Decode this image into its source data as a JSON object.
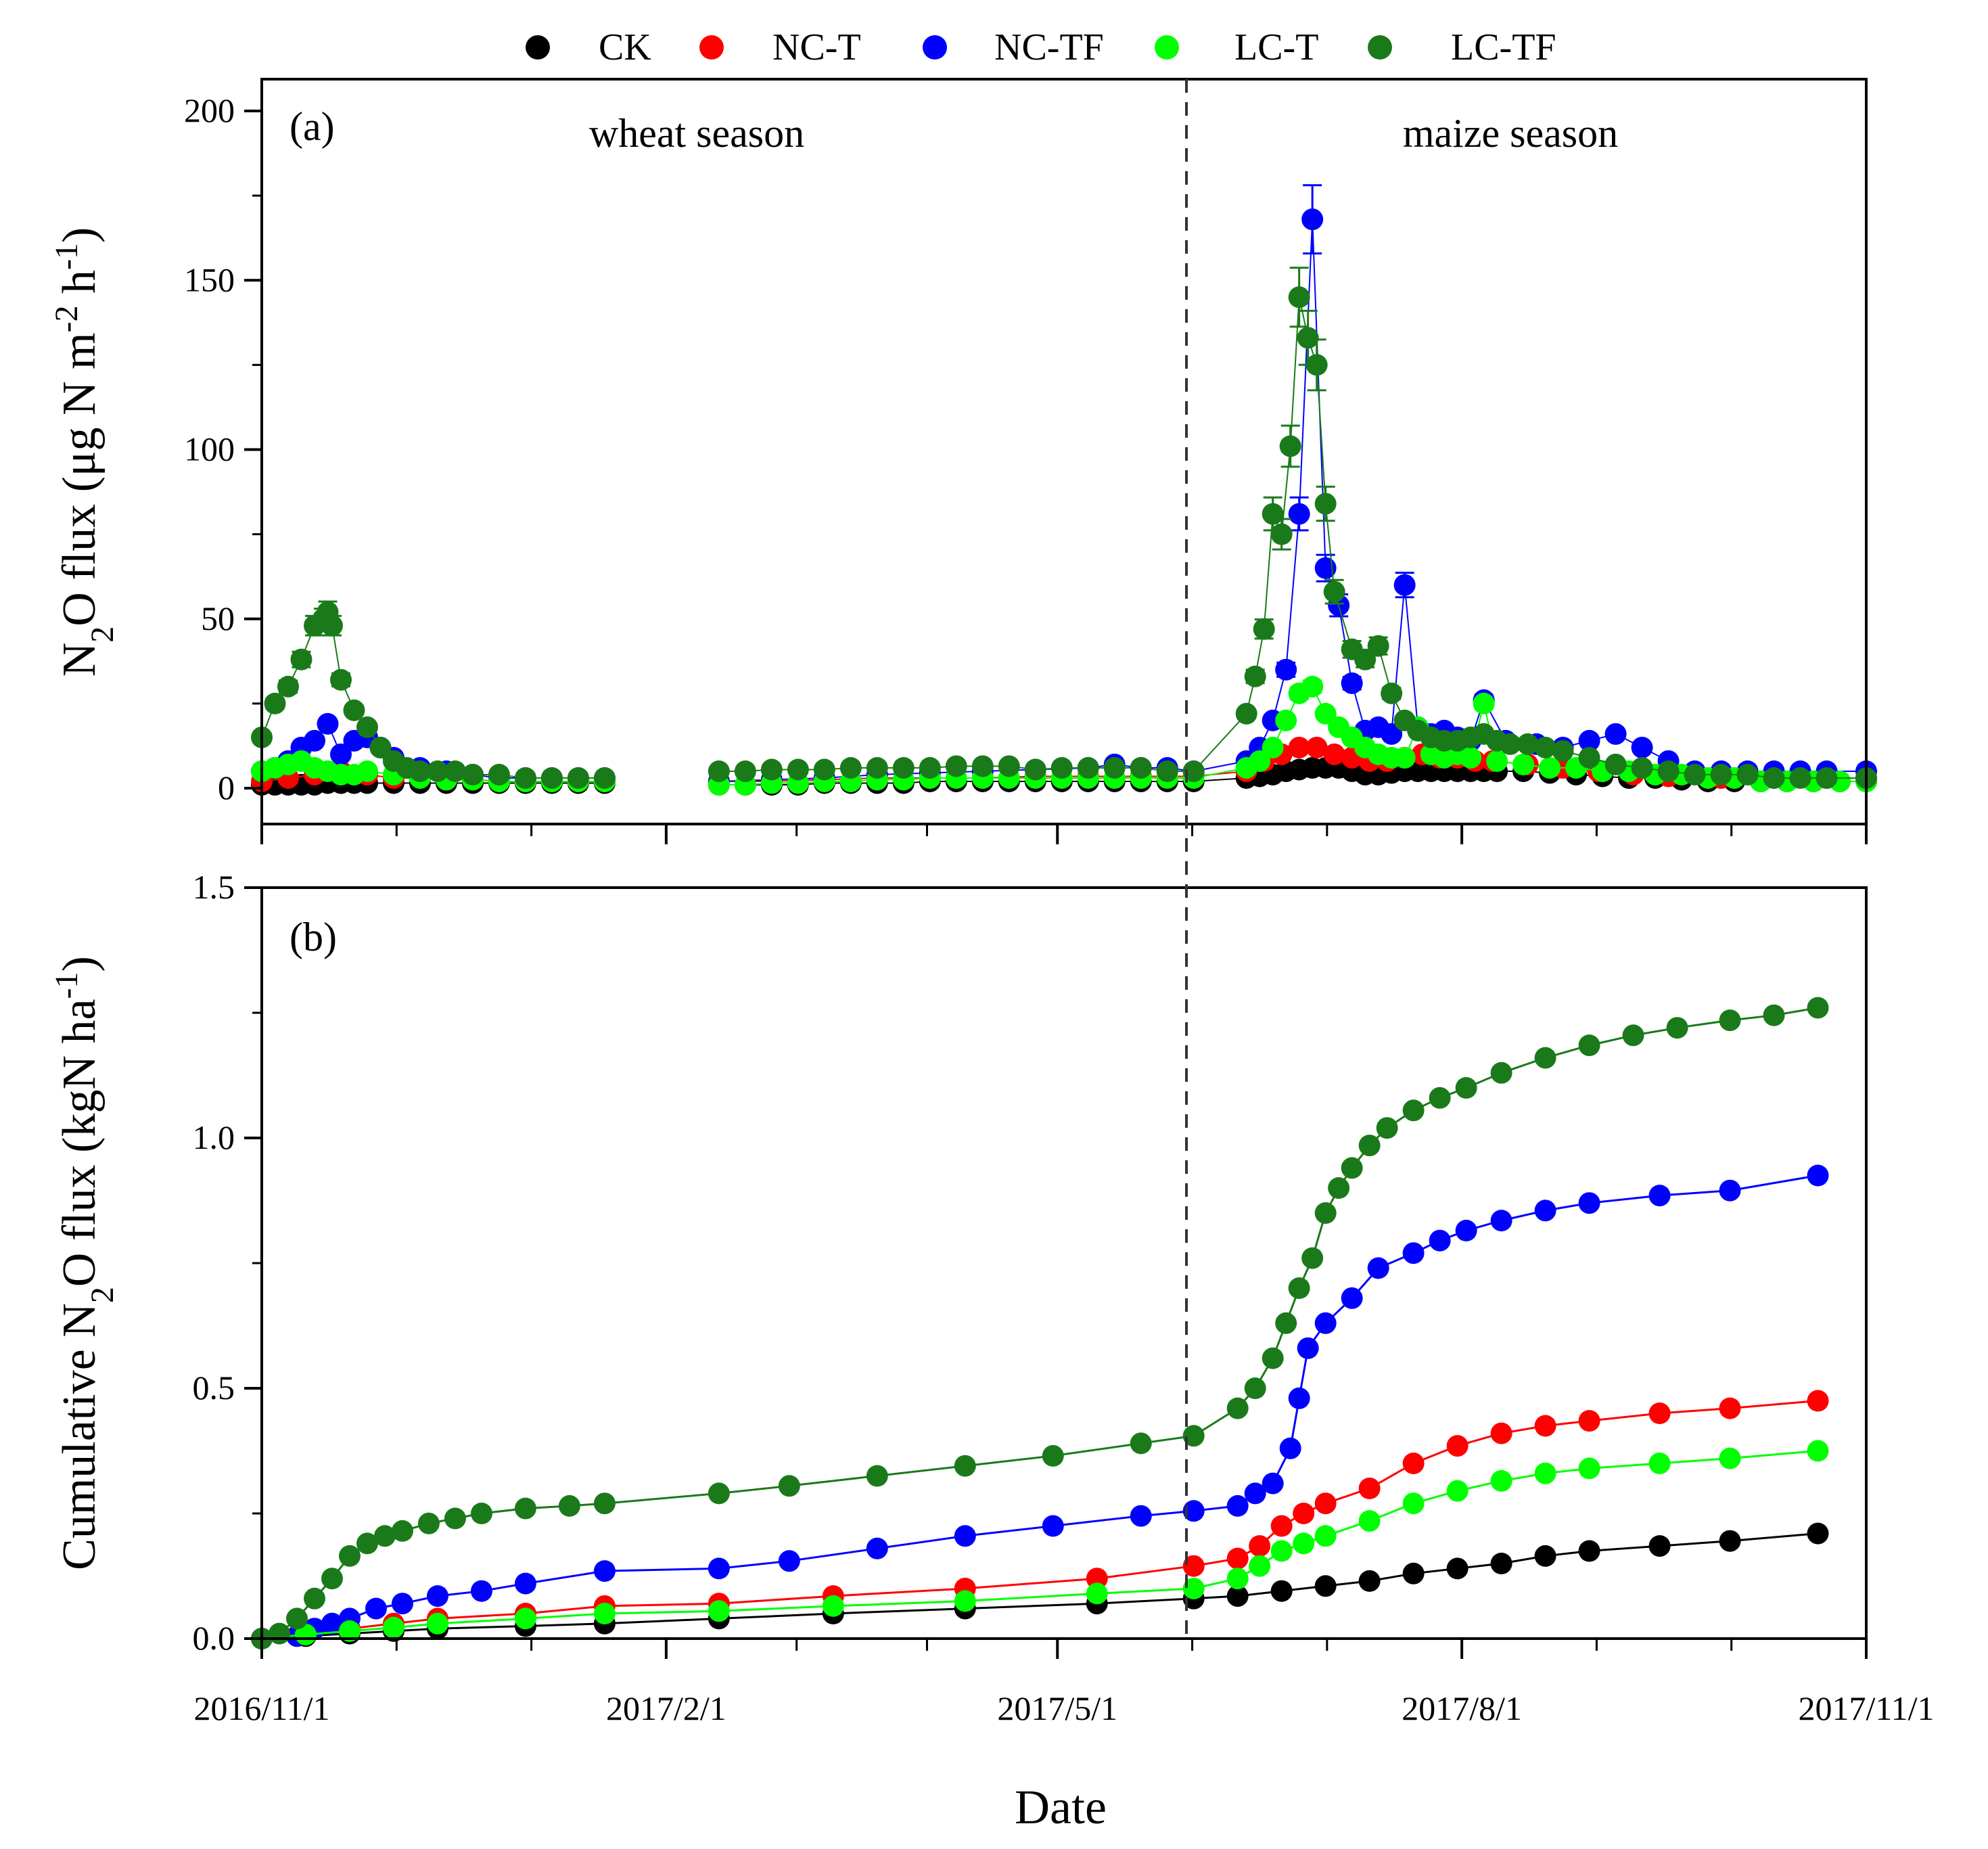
{
  "chart_data": [
    {
      "panel": "(a)",
      "type": "scatter",
      "ylabel": "N2O flux (μg N m-2 h-1)",
      "ylim": [
        -20,
        200
      ],
      "yticks": [
        0,
        50,
        100,
        150,
        200
      ],
      "annotations": [
        "wheat season",
        "maize season"
      ],
      "date_range_days": [
        0,
        365
      ],
      "series": [
        {
          "name": "CK",
          "color": "#000000",
          "x": [
            0,
            3,
            6,
            9,
            12,
            15,
            18,
            21,
            24,
            30,
            36,
            42,
            48,
            54,
            60,
            66,
            72,
            78,
            104,
            110,
            116,
            122,
            128,
            134,
            140,
            146,
            152,
            158,
            164,
            170,
            176,
            182,
            188,
            194,
            200,
            206,
            212,
            224,
            227,
            230,
            233,
            236,
            239,
            242,
            245,
            248,
            251,
            254,
            257,
            260,
            263,
            266,
            269,
            272,
            275,
            278,
            281,
            287,
            293,
            299,
            305,
            311,
            317,
            323,
            329,
            335,
            341,
            347,
            353,
            359,
            365
          ],
          "y": [
            1,
            1,
            1,
            1,
            1,
            1.5,
            1.5,
            1.5,
            1.5,
            1.5,
            1.5,
            1.5,
            1.5,
            1.5,
            1.5,
            1.5,
            1.5,
            1.5,
            1,
            1,
            1,
            1,
            1.5,
            1.5,
            1.5,
            1.5,
            2,
            2,
            2,
            2,
            2,
            2,
            2,
            2,
            2,
            2,
            2,
            3,
            3.5,
            4,
            5,
            5.5,
            6,
            6,
            6,
            5,
            4,
            4,
            4.5,
            5,
            5,
            5,
            5,
            5,
            5,
            5,
            5,
            5,
            4.5,
            4,
            3.5,
            3,
            3,
            2.5,
            2,
            2,
            2,
            2,
            2,
            2,
            2
          ]
        },
        {
          "name": "NC-T",
          "color": "#ff0000",
          "x": [
            0,
            6,
            12,
            18,
            24,
            30,
            36,
            42,
            48,
            54,
            60,
            66,
            72,
            78,
            104,
            116,
            128,
            140,
            152,
            164,
            176,
            188,
            200,
            212,
            224,
            228,
            232,
            236,
            240,
            244,
            248,
            252,
            256,
            260,
            264,
            268,
            272,
            276,
            280,
            288,
            296,
            304,
            312,
            320,
            332,
            344,
            356,
            365
          ],
          "y": [
            2,
            3,
            4,
            5,
            4,
            3,
            3,
            2.5,
            2.5,
            2,
            2,
            2,
            2,
            2,
            2,
            2,
            2.5,
            3,
            3,
            3,
            3.5,
            3.5,
            3.5,
            3.5,
            5,
            8,
            10,
            12,
            12,
            10,
            9,
            8,
            8,
            9,
            10,
            9,
            9,
            8,
            8,
            7,
            6,
            5,
            4,
            3.5,
            3,
            3,
            3,
            3
          ]
        },
        {
          "name": "NC-TF",
          "color": "#0000ff",
          "x": [
            0,
            3,
            6,
            9,
            12,
            15,
            18,
            21,
            24,
            27,
            30,
            36,
            42,
            48,
            54,
            60,
            66,
            72,
            78,
            104,
            116,
            128,
            140,
            152,
            164,
            176,
            188,
            194,
            200,
            206,
            212,
            224,
            227,
            230,
            233,
            236,
            239,
            242,
            245,
            248,
            251,
            254,
            257,
            260,
            263,
            266,
            269,
            272,
            275,
            278,
            283,
            290,
            296,
            302,
            308,
            314,
            320,
            326,
            332,
            338,
            344,
            350,
            356,
            365
          ],
          "y": [
            5,
            6,
            8,
            12,
            14,
            19,
            10,
            14,
            15,
            12,
            9,
            6,
            5,
            4,
            3,
            3,
            3,
            3,
            3,
            2,
            2.5,
            3,
            4,
            4.5,
            5,
            5.5,
            6,
            7,
            6,
            6,
            5,
            8,
            12,
            20,
            35,
            81,
            168,
            65,
            54,
            31,
            17,
            18,
            16,
            60,
            18,
            16,
            17,
            15,
            14,
            26,
            14,
            13,
            12,
            14,
            16,
            12,
            8,
            5,
            5,
            5,
            5,
            5,
            5,
            5
          ]
        },
        {
          "name": "LC-T",
          "color": "#00ff00",
          "x": [
            0,
            3,
            6,
            9,
            12,
            15,
            18,
            21,
            24,
            30,
            36,
            42,
            48,
            54,
            60,
            66,
            72,
            78,
            104,
            110,
            116,
            122,
            128,
            134,
            140,
            146,
            152,
            158,
            164,
            170,
            176,
            182,
            188,
            194,
            200,
            206,
            212,
            224,
            227,
            230,
            233,
            236,
            239,
            242,
            245,
            248,
            251,
            254,
            257,
            260,
            263,
            266,
            269,
            272,
            275,
            278,
            281,
            287,
            293,
            299,
            305,
            311,
            317,
            323,
            329,
            335,
            341,
            347,
            353,
            359,
            365
          ],
          "y": [
            5,
            6,
            7,
            8,
            6,
            5,
            4,
            4,
            5,
            4,
            3,
            2.5,
            2.5,
            2,
            2,
            2,
            2,
            2,
            1,
            1,
            1.5,
            1.5,
            2,
            2,
            2.5,
            2.5,
            3,
            3,
            3,
            3,
            3,
            3,
            3,
            3,
            3,
            3,
            3,
            6,
            8,
            12,
            20,
            28,
            30,
            22,
            18,
            15,
            12,
            10,
            9,
            9,
            18,
            10,
            9,
            10,
            9,
            25,
            8,
            7,
            6,
            6,
            5,
            5,
            4,
            4,
            3,
            3,
            2,
            2,
            2,
            2,
            2
          ]
        },
        {
          "name": "LC-TF",
          "color": "#1a7a1a",
          "x": [
            0,
            3,
            6,
            9,
            12,
            14,
            15,
            16,
            18,
            21,
            24,
            27,
            30,
            33,
            36,
            40,
            44,
            48,
            54,
            60,
            66,
            72,
            78,
            104,
            110,
            116,
            122,
            128,
            134,
            140,
            146,
            152,
            158,
            164,
            170,
            176,
            182,
            188,
            194,
            200,
            206,
            212,
            224,
            226,
            228,
            230,
            232,
            234,
            236,
            238,
            240,
            242,
            244,
            248,
            251,
            254,
            257,
            260,
            263,
            266,
            269,
            272,
            275,
            278,
            281,
            284,
            288,
            292,
            296,
            302,
            308,
            314,
            320,
            326,
            332,
            338,
            344,
            350,
            356,
            365
          ],
          "y": [
            15,
            25,
            30,
            38,
            48,
            50,
            52,
            48,
            32,
            23,
            18,
            12,
            8,
            6,
            5,
            5,
            5,
            4,
            4,
            3,
            3,
            3,
            3,
            5,
            5,
            5.5,
            5.5,
            5.5,
            6,
            6,
            6,
            6,
            6.5,
            6.5,
            6.5,
            5.5,
            6,
            6,
            6,
            6,
            5,
            5,
            22,
            33,
            47,
            81,
            75,
            101,
            145,
            133,
            125,
            84,
            58,
            41,
            38,
            42,
            28,
            20,
            17,
            15,
            14,
            14,
            15,
            16,
            14,
            13,
            13,
            12,
            11,
            9,
            7,
            6,
            5,
            4,
            4,
            4,
            3,
            3,
            3,
            3
          ]
        }
      ]
    },
    {
      "panel": "(b)",
      "type": "line",
      "xlabel": "Date",
      "ylabel": "Cumulative N2O flux (kgN ha-1)",
      "ylim": [
        0,
        1.5
      ],
      "yticks": [
        0.0,
        0.5,
        1.0,
        1.5
      ],
      "xtick_labels": [
        "2016/11/1",
        "2017/2/1",
        "2017/5/1",
        "2017/8/1",
        "2017/11/1"
      ],
      "xtick_days": [
        0,
        92,
        181,
        273,
        365
      ],
      "season_split_day": 212,
      "series": [
        {
          "name": "CK",
          "color": "#000000",
          "x": [
            0,
            10,
            20,
            30,
            40,
            60,
            78,
            104,
            130,
            160,
            190,
            212,
            222,
            232,
            242,
            252,
            262,
            272,
            282,
            292,
            302,
            318,
            334,
            354
          ],
          "y": [
            0,
            0.005,
            0.01,
            0.015,
            0.02,
            0.025,
            0.03,
            0.04,
            0.05,
            0.06,
            0.07,
            0.08,
            0.085,
            0.095,
            0.105,
            0.115,
            0.13,
            0.14,
            0.15,
            0.165,
            0.175,
            0.185,
            0.195,
            0.21
          ]
        },
        {
          "name": "NC-T",
          "color": "#ff0000",
          "x": [
            0,
            10,
            20,
            30,
            40,
            60,
            78,
            104,
            130,
            160,
            190,
            212,
            222,
            227,
            232,
            237,
            242,
            252,
            262,
            272,
            282,
            292,
            302,
            318,
            334,
            354
          ],
          "y": [
            0,
            0.01,
            0.02,
            0.03,
            0.04,
            0.05,
            0.065,
            0.07,
            0.085,
            0.1,
            0.12,
            0.145,
            0.16,
            0.185,
            0.225,
            0.25,
            0.27,
            0.3,
            0.35,
            0.385,
            0.41,
            0.425,
            0.435,
            0.45,
            0.46,
            0.475
          ]
        },
        {
          "name": "NC-TF",
          "color": "#0000ff",
          "x": [
            0,
            8,
            12,
            16,
            20,
            26,
            32,
            40,
            50,
            60,
            78,
            104,
            120,
            140,
            160,
            180,
            200,
            212,
            222,
            226,
            230,
            234,
            236,
            238,
            242,
            248,
            254,
            262,
            268,
            274,
            282,
            292,
            302,
            318,
            334,
            354
          ],
          "y": [
            0,
            0.005,
            0.02,
            0.03,
            0.04,
            0.06,
            0.07,
            0.085,
            0.095,
            0.11,
            0.135,
            0.14,
            0.155,
            0.18,
            0.205,
            0.225,
            0.245,
            0.255,
            0.265,
            0.29,
            0.31,
            0.38,
            0.48,
            0.58,
            0.63,
            0.68,
            0.74,
            0.77,
            0.795,
            0.815,
            0.835,
            0.855,
            0.87,
            0.885,
            0.895,
            0.925
          ]
        },
        {
          "name": "LC-T",
          "color": "#00ff00",
          "x": [
            0,
            10,
            20,
            30,
            40,
            60,
            78,
            104,
            130,
            160,
            190,
            212,
            222,
            227,
            232,
            237,
            242,
            252,
            262,
            272,
            282,
            292,
            302,
            318,
            334,
            354
          ],
          "y": [
            0,
            0.008,
            0.015,
            0.022,
            0.03,
            0.04,
            0.05,
            0.055,
            0.065,
            0.075,
            0.09,
            0.1,
            0.12,
            0.145,
            0.175,
            0.19,
            0.205,
            0.235,
            0.27,
            0.295,
            0.315,
            0.33,
            0.34,
            0.35,
            0.36,
            0.375
          ]
        },
        {
          "name": "LC-TF",
          "color": "#1a7a1a",
          "x": [
            0,
            4,
            8,
            12,
            16,
            20,
            24,
            28,
            32,
            38,
            44,
            50,
            60,
            70,
            78,
            104,
            120,
            140,
            160,
            180,
            200,
            212,
            222,
            226,
            230,
            233,
            236,
            239,
            242,
            245,
            248,
            252,
            256,
            262,
            268,
            274,
            282,
            292,
            302,
            312,
            322,
            334,
            344,
            354
          ],
          "y": [
            0,
            0.01,
            0.04,
            0.08,
            0.12,
            0.165,
            0.19,
            0.205,
            0.215,
            0.23,
            0.24,
            0.25,
            0.26,
            0.265,
            0.27,
            0.29,
            0.305,
            0.325,
            0.345,
            0.365,
            0.39,
            0.405,
            0.46,
            0.5,
            0.56,
            0.63,
            0.7,
            0.76,
            0.85,
            0.9,
            0.94,
            0.985,
            1.02,
            1.055,
            1.08,
            1.1,
            1.13,
            1.16,
            1.185,
            1.205,
            1.22,
            1.235,
            1.245,
            1.26
          ]
        }
      ]
    }
  ],
  "legend": [
    {
      "label": "CK",
      "color": "#000000"
    },
    {
      "label": "NC-T",
      "color": "#ff0000"
    },
    {
      "label": "NC-TF",
      "color": "#0000ff"
    },
    {
      "label": "LC-T",
      "color": "#00ff00"
    },
    {
      "label": "LC-TF",
      "color": "#1a7a1a"
    }
  ],
  "panel_a": {
    "label": "(a)",
    "wheat_label": "wheat season",
    "maize_label": "maize season",
    "ytick_labels": [
      "0",
      "50",
      "100",
      "150",
      "200"
    ],
    "ylabel_parts": {
      "pre": "N",
      "sub1": "2",
      "mid": "O flux (μg N m",
      "sup1": "-2",
      "mid2": " h",
      "sup2": "-1",
      "post": ")"
    }
  },
  "panel_b": {
    "label": "(b)",
    "ytick_labels": [
      "0.0",
      "0.5",
      "1.0",
      "1.5"
    ],
    "ylabel_parts": {
      "pre": "Cumulative N",
      "sub1": "2",
      "mid": "O flux (kgN ha",
      "sup1": "-1",
      "post": ")"
    }
  },
  "xaxis": {
    "title": "Date",
    "tick_labels": [
      "2016/11/1",
      "2017/2/1",
      "2017/5/1",
      "2017/8/1",
      "2017/11/1"
    ]
  }
}
